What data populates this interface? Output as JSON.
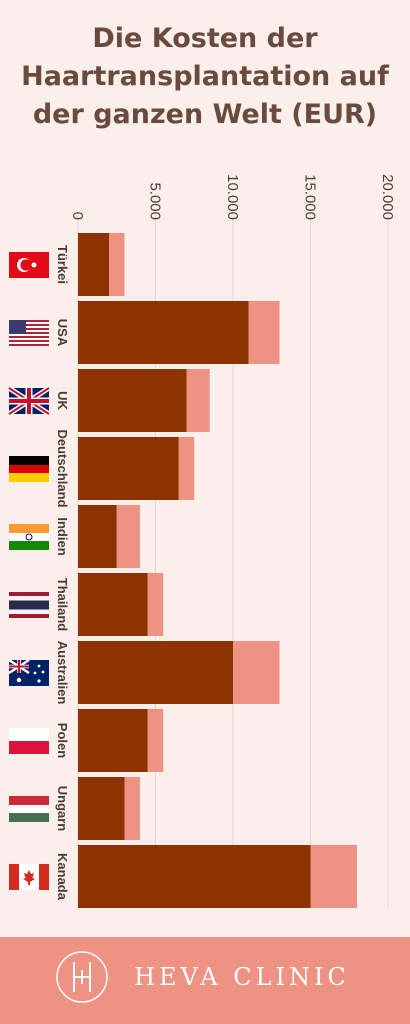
{
  "chart_data": {
    "type": "bar",
    "orientation": "horizontal",
    "stacked": true,
    "title": "Die Kosten der Haartransplantation  auf der ganzen Welt (EUR)",
    "categories": [
      "Türkei",
      "USA",
      "UK",
      "Deutschland",
      "Indien",
      "Thailand",
      "Australien",
      "Polen",
      "Ungarn",
      "Kanada"
    ],
    "series": [
      {
        "color": "#8c3300",
        "values": [
          2000,
          11000,
          7000,
          6500,
          2500,
          4500,
          10000,
          4500,
          3000,
          15000
        ]
      },
      {
        "color": "#ee9383",
        "values": [
          1000,
          2000,
          1500,
          1000,
          1500,
          1000,
          3000,
          1000,
          1000,
          3000
        ]
      }
    ],
    "xlim": [
      0,
      21000
    ],
    "xticks": [
      0,
      {
        "value": 5000,
        "label": "5.000"
      },
      {
        "value": 10000,
        "label": "10.000"
      },
      {
        "value": 15000,
        "label": "15.000"
      },
      {
        "value": 20000,
        "label": "20.000"
      }
    ],
    "grid": true
  },
  "brand": "HEVA CLINIC"
}
